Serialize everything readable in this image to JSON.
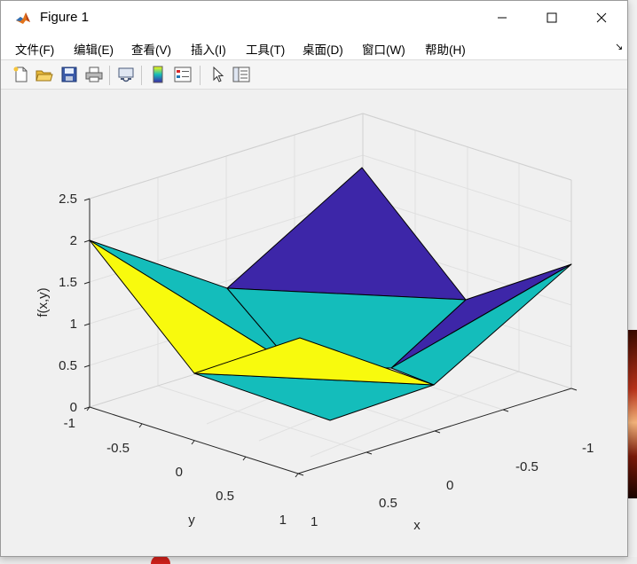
{
  "window": {
    "title": "Figure 1"
  },
  "menu": [
    "文件(F)",
    "编辑(E)",
    "查看(V)",
    "插入(I)",
    "工具(T)",
    "桌面(D)",
    "窗口(W)",
    "帮助(H)"
  ],
  "toolbar": {
    "buttons": [
      "new-figure",
      "open-file",
      "save",
      "print",
      "link-plot",
      "insert-colorbar",
      "insert-legend",
      "edit-plot",
      "property-inspector"
    ]
  },
  "axes": {
    "z_ticks": [
      "0",
      "0.5",
      "1",
      "1.5",
      "2",
      "2.5"
    ],
    "y_ticks": [
      "-1",
      "-0.5",
      "0",
      "0.5",
      "1"
    ],
    "x_ticks": [
      "-1",
      "-0.5",
      "0",
      "0.5",
      "1"
    ],
    "xlabel": "x",
    "ylabel": "y",
    "zlabel": "f(x,y)"
  },
  "chart_data": {
    "type": "surface",
    "xlabel": "x",
    "ylabel": "y",
    "zlabel": "f(x,y)",
    "xlim": [
      -1,
      1
    ],
    "ylim": [
      -1,
      1
    ],
    "zlim": [
      0,
      2.5
    ],
    "x": [
      -1,
      0,
      1
    ],
    "y": [
      -1,
      0,
      1
    ],
    "z": [
      [
        2,
        1,
        2
      ],
      [
        1,
        0,
        1
      ],
      [
        2,
        1,
        2
      ]
    ],
    "colormap": [
      "#3d26a8",
      "#14bdbb",
      "#f8fa0d"
    ],
    "grid": true
  }
}
